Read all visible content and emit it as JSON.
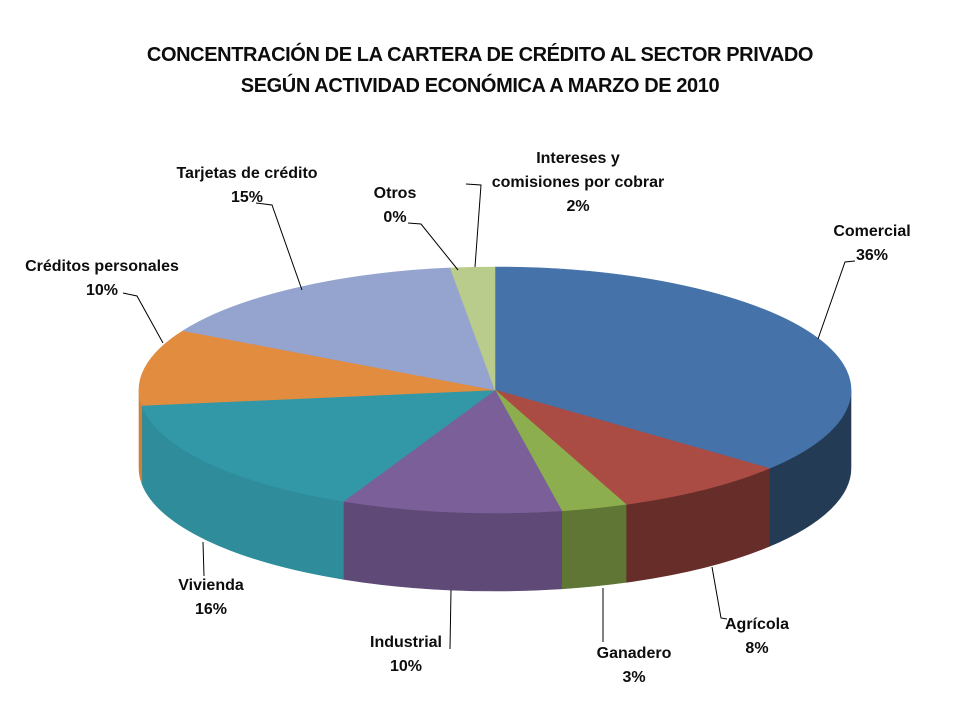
{
  "title": {
    "line1": "CONCENTRACIÓN DE LA CARTERA DE CRÉDITO AL SECTOR PRIVADO",
    "line2": "SEGÚN ACTIVIDAD ECONÓMICA A MARZO DE 2010"
  },
  "chart_data": {
    "type": "pie",
    "style": "3d",
    "title": "CONCENTRACIÓN DE LA CARTERA DE CRÉDITO AL SECTOR PRIVADO SEGÚN ACTIVIDAD ECONÓMICA A MARZO DE 2010",
    "unit": "%",
    "legend": "none",
    "label_style": "outside-with-leader-lines",
    "start_angle_deg": 0,
    "direction": "clockwise",
    "slices": [
      {
        "label": "Comercial",
        "pct_text": "36%",
        "value": 36,
        "color": "#4572A8"
      },
      {
        "label": "Agrícola",
        "pct_text": "8%",
        "value": 8,
        "color": "#AA4B44"
      },
      {
        "label": "Ganadero",
        "pct_text": "3%",
        "value": 3,
        "color": "#8CAE4E"
      },
      {
        "label": "Industrial",
        "pct_text": "10%",
        "value": 10,
        "color": "#7A5F98"
      },
      {
        "label": "Vivienda",
        "pct_text": "16%",
        "value": 16,
        "color": "#3298A8"
      },
      {
        "label": "Créditos personales",
        "pct_text": "10%",
        "value": 10,
        "color": "#E18C3E"
      },
      {
        "label": "Tarjetas de crédito",
        "pct_text": "15%",
        "value": 15,
        "color": "#95A3CF"
      },
      {
        "label": "Otros",
        "pct_text": "0%",
        "value": 0,
        "color": "#D9E2C5"
      },
      {
        "label": "Intereses y",
        "label2": "comisiones por cobrar",
        "pct_text": "2%",
        "value": 2,
        "color": "#B9CC8B"
      }
    ]
  }
}
